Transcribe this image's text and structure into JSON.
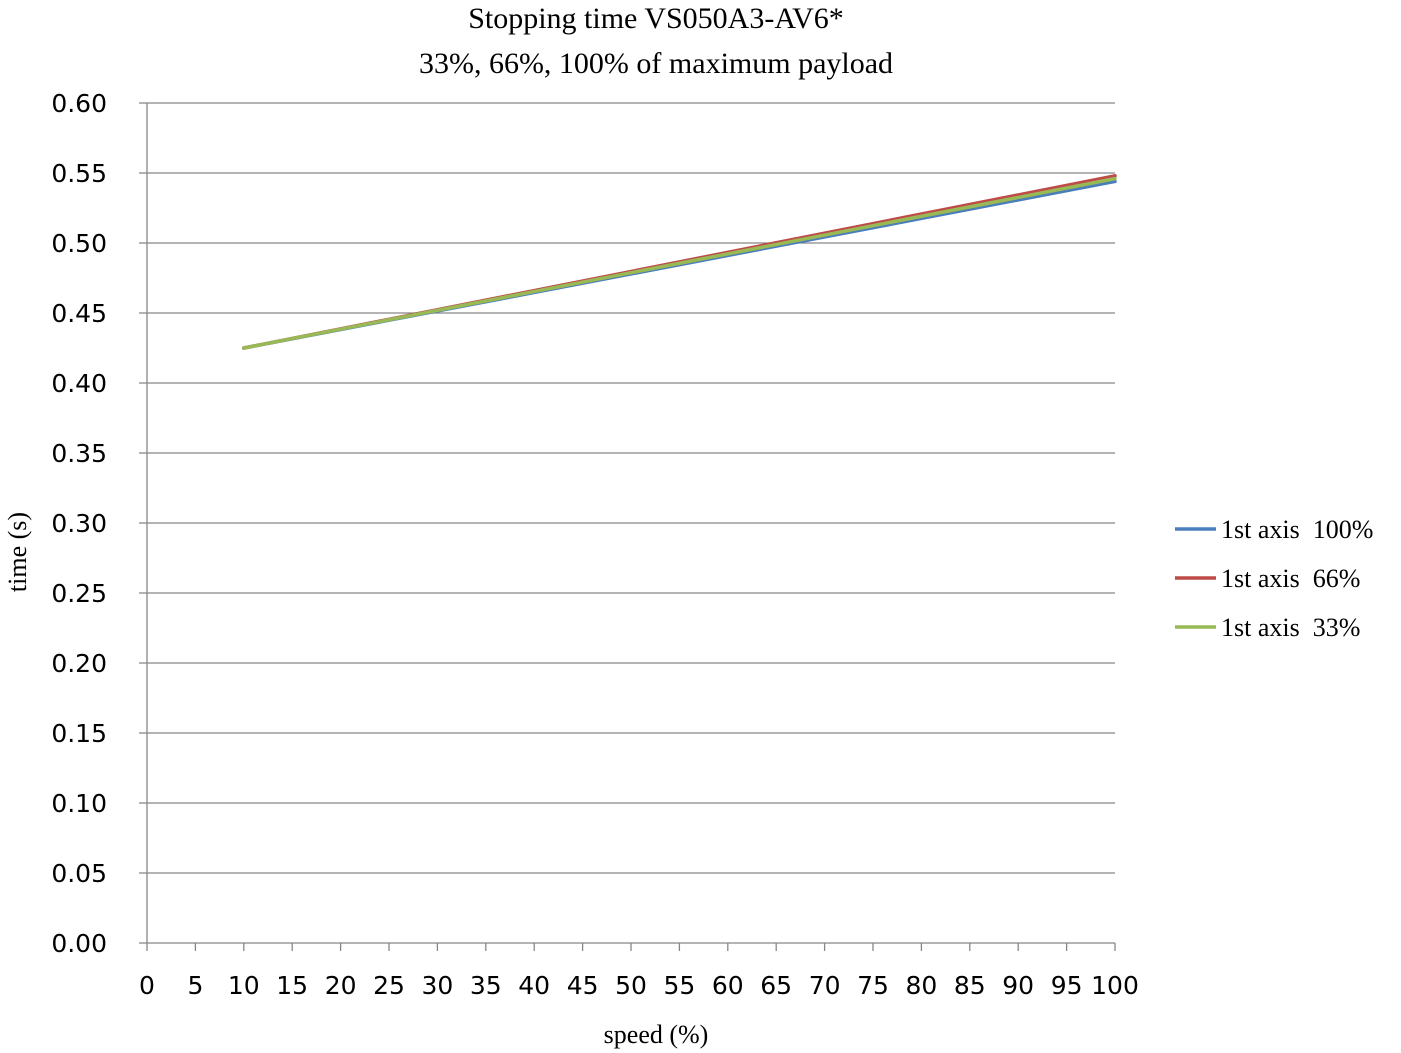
{
  "chart_data": {
    "type": "line",
    "title": "Stopping time VS050A3-AV6*",
    "subtitle": "33%, 66%, 100% of maximum payload",
    "xlabel": "speed (%)",
    "ylabel": "time (s)",
    "xlim": [
      0,
      100
    ],
    "ylim": [
      0,
      0.6
    ],
    "x_ticks": [
      "0",
      "5",
      "10",
      "15",
      "20",
      "25",
      "30",
      "35",
      "40",
      "45",
      "50",
      "55",
      "60",
      "65",
      "70",
      "75",
      "80",
      "85",
      "90",
      "95",
      "100"
    ],
    "y_ticks": [
      "0.00",
      "0.05",
      "0.10",
      "0.15",
      "0.20",
      "0.25",
      "0.30",
      "0.35",
      "0.40",
      "0.45",
      "0.50",
      "0.55",
      "0.60"
    ],
    "grid": "horizontal",
    "legend_position": "right",
    "series": [
      {
        "name": "1st axis  100%",
        "color": "#4a7ebb",
        "x": [
          10,
          100
        ],
        "y": [
          0.425,
          0.544
        ]
      },
      {
        "name": "1st axis  66%",
        "color": "#be4b48",
        "x": [
          10,
          100
        ],
        "y": [
          0.425,
          0.548
        ]
      },
      {
        "name": "1st axis  33%",
        "color": "#98b954",
        "x": [
          10,
          100
        ],
        "y": [
          0.425,
          0.546
        ]
      }
    ]
  }
}
